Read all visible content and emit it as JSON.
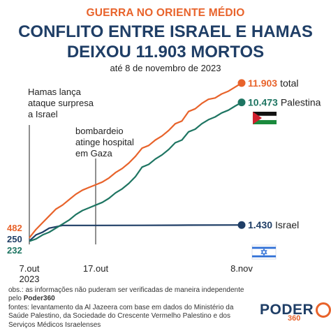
{
  "header": {
    "kicker": "GUERRA NO ORIENTE MÉDIO",
    "title_line1": "CONFLITO ENTRE ISRAEL E HAMAS",
    "title_line2": "DEIXOU 11.903 MORTOS",
    "subtitle": "até 8 de novembro de 2023"
  },
  "colors": {
    "total": "#e8632b",
    "palestina": "#1e7562",
    "israel": "#1f3e66",
    "title": "#1f3e66",
    "kicker": "#e8632b"
  },
  "chart_data": {
    "type": "line",
    "x_labels": [
      "7.out\n2023",
      "17.out",
      "8.nov"
    ],
    "x_range": [
      "2023-10-07",
      "2023-11-08"
    ],
    "y_range": [
      0,
      12000
    ],
    "grid": false,
    "start_values": {
      "total": "482",
      "israel": "250",
      "palestina": "232"
    },
    "end_labels": {
      "total": {
        "value": "11.903",
        "name": "total"
      },
      "palestina": {
        "value": "10.473",
        "name": "Palestina"
      },
      "israel": {
        "value": "1.430",
        "name": "Israel"
      }
    },
    "annotations": [
      {
        "date": "2023-10-07",
        "text": [
          "Hamas lança",
          "ataque surpresa",
          "a Israel"
        ]
      },
      {
        "date": "2023-10-17",
        "text": [
          "bombardeio",
          "atinge hospital",
          "em Gaza"
        ]
      }
    ],
    "series": [
      {
        "name": "total",
        "color": "#e8632b",
        "x": [
          "2023-10-07",
          "2023-10-08",
          "2023-10-09",
          "2023-10-10",
          "2023-10-11",
          "2023-10-12",
          "2023-10-13",
          "2023-10-14",
          "2023-10-15",
          "2023-10-16",
          "2023-10-17",
          "2023-10-18",
          "2023-10-19",
          "2023-10-20",
          "2023-10-21",
          "2023-10-22",
          "2023-10-23",
          "2023-10-24",
          "2023-10-25",
          "2023-10-26",
          "2023-10-27",
          "2023-10-28",
          "2023-10-29",
          "2023-10-30",
          "2023-10-31",
          "2023-11-01",
          "2023-11-02",
          "2023-11-03",
          "2023-11-04",
          "2023-11-05",
          "2023-11-06",
          "2023-11-07",
          "2023-11-08"
        ],
        "values": [
          482,
          1100,
          1600,
          2100,
          2600,
          2900,
          3300,
          3700,
          4000,
          4200,
          4400,
          4600,
          4900,
          5300,
          5600,
          6000,
          6500,
          7100,
          7300,
          7700,
          8000,
          8400,
          8900,
          9100,
          9800,
          10000,
          10400,
          10700,
          10800,
          11100,
          11300,
          11600,
          11903
        ]
      },
      {
        "name": "Palestina",
        "color": "#1e7562",
        "x": [
          "2023-10-07",
          "2023-10-08",
          "2023-10-09",
          "2023-10-10",
          "2023-10-11",
          "2023-10-12",
          "2023-10-13",
          "2023-10-14",
          "2023-10-15",
          "2023-10-16",
          "2023-10-17",
          "2023-10-18",
          "2023-10-19",
          "2023-10-20",
          "2023-10-21",
          "2023-10-22",
          "2023-10-23",
          "2023-10-24",
          "2023-10-25",
          "2023-10-26",
          "2023-10-27",
          "2023-10-28",
          "2023-10-29",
          "2023-10-30",
          "2023-10-31",
          "2023-11-01",
          "2023-11-02",
          "2023-11-03",
          "2023-11-04",
          "2023-11-05",
          "2023-11-06",
          "2023-11-07",
          "2023-11-08"
        ],
        "values": [
          232,
          400,
          700,
          900,
          1200,
          1500,
          1800,
          2200,
          2500,
          2700,
          2900,
          3100,
          3400,
          3800,
          4100,
          4500,
          5000,
          5700,
          5900,
          6300,
          6600,
          7000,
          7500,
          7700,
          8300,
          8500,
          8900,
          9200,
          9400,
          9700,
          9900,
          10200,
          10473
        ]
      },
      {
        "name": "Israel",
        "color": "#1f3e66",
        "x": [
          "2023-10-07",
          "2023-10-08",
          "2023-10-09",
          "2023-10-10",
          "2023-10-11",
          "2023-10-12",
          "2023-10-17",
          "2023-10-24",
          "2023-10-31",
          "2023-11-08"
        ],
        "values": [
          250,
          700,
          900,
          1200,
          1300,
          1400,
          1400,
          1405,
          1420,
          1430
        ]
      }
    ]
  },
  "footer": {
    "obs_prefix": "obs.: as informações não puderam ser verificadas de maneira independente pelo ",
    "obs_brand": "Poder360",
    "sources": "fontes: levantamento da Al Jazeera com base em dados do Ministério da Saúde Palestino, da Sociedade do Crescente Vermelho Palestino e dos Serviços Médicos Israelenses"
  },
  "brand": {
    "name": "PODER",
    "sub": "360"
  }
}
